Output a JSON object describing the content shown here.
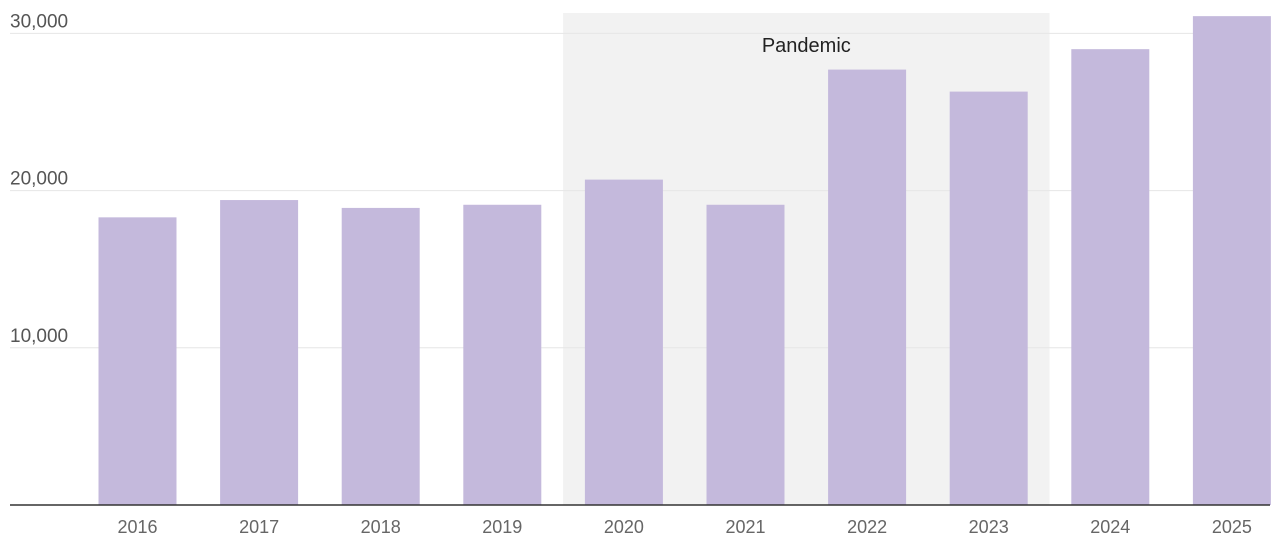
{
  "chart_data": {
    "type": "bar",
    "categories": [
      "2016",
      "2017",
      "2018",
      "2019",
      "2020",
      "2021",
      "2022",
      "2023",
      "2024",
      "2025"
    ],
    "values": [
      18300,
      19400,
      18900,
      19100,
      20700,
      19100,
      27700,
      26300,
      29000,
      31100
    ],
    "title": "",
    "xlabel": "",
    "ylabel": "",
    "ylim": [
      0,
      31300
    ],
    "yticks": [
      10000,
      20000,
      30000
    ],
    "ytick_labels": [
      "10,000",
      "20,000",
      "30,000"
    ],
    "grid": true,
    "legend": "none",
    "highlight": {
      "label": "Pandemic",
      "from": "2020",
      "to": "2023"
    },
    "colors": {
      "bar": "#c4b9dc",
      "shade": "#f2f2f2",
      "grid": "#e6e6e6",
      "axis": "#333333"
    }
  }
}
